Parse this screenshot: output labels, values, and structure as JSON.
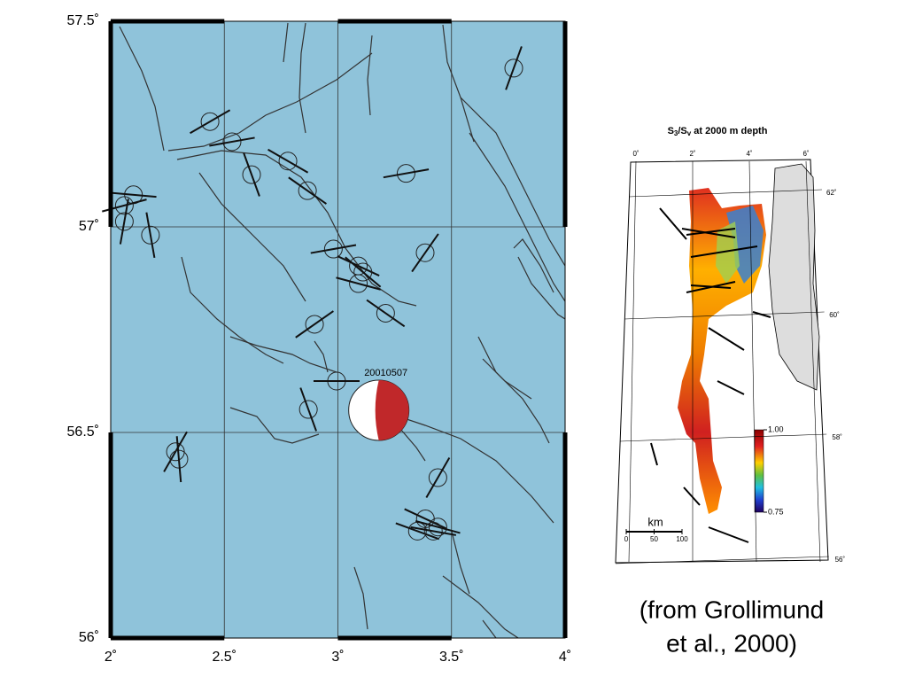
{
  "map": {
    "xlim": [
      2,
      4
    ],
    "ylim": [
      56,
      57.5
    ],
    "xticks": [
      {
        "value": 2,
        "label": "2˚"
      },
      {
        "value": 2.5,
        "label": "2.5˚"
      },
      {
        "value": 3,
        "label": "3˚"
      },
      {
        "value": 3.5,
        "label": "3.5˚"
      },
      {
        "value": 4,
        "label": "4˚"
      }
    ],
    "yticks": [
      {
        "value": 56,
        "label": "56˚"
      },
      {
        "value": 56.5,
        "label": "56.5˚"
      },
      {
        "value": 57,
        "label": "57˚"
      },
      {
        "value": 57.5,
        "label": "57.5˚"
      }
    ],
    "stress_indicators": [
      {
        "lon": 3.774,
        "lat": 57.386,
        "azimuth": 20
      },
      {
        "lon": 2.437,
        "lat": 57.256,
        "azimuth": 60
      },
      {
        "lon": 2.534,
        "lat": 57.207,
        "azimuth": 80
      },
      {
        "lon": 2.62,
        "lat": 57.127,
        "azimuth": 160
      },
      {
        "lon": 2.78,
        "lat": 57.16,
        "azimuth": 120
      },
      {
        "lon": 2.866,
        "lat": 57.088,
        "azimuth": 125
      },
      {
        "lon": 3.3,
        "lat": 57.13,
        "azimuth": 80
      },
      {
        "lon": 2.1,
        "lat": 57.078,
        "azimuth": 95
      },
      {
        "lon": 2.06,
        "lat": 57.052,
        "azimuth": 75
      },
      {
        "lon": 2.06,
        "lat": 57.013,
        "azimuth": 10
      },
      {
        "lon": 2.175,
        "lat": 56.98,
        "azimuth": 170
      },
      {
        "lon": 2.98,
        "lat": 56.946,
        "azimuth": 80
      },
      {
        "lon": 3.09,
        "lat": 56.905,
        "azimuth": 115
      },
      {
        "lon": 3.11,
        "lat": 56.89,
        "azimuth": 130
      },
      {
        "lon": 3.09,
        "lat": 56.862,
        "azimuth": 105
      },
      {
        "lon": 3.384,
        "lat": 56.937,
        "azimuth": 35
      },
      {
        "lon": 3.21,
        "lat": 56.79,
        "azimuth": 125
      },
      {
        "lon": 2.897,
        "lat": 56.763,
        "azimuth": 55
      },
      {
        "lon": 2.994,
        "lat": 56.625,
        "azimuth": 90
      },
      {
        "lon": 2.87,
        "lat": 56.556,
        "azimuth": 160
      },
      {
        "lon": 2.285,
        "lat": 56.453,
        "azimuth": 30
      },
      {
        "lon": 2.3,
        "lat": 56.435,
        "azimuth": 175
      },
      {
        "lon": 3.44,
        "lat": 56.39,
        "azimuth": 30
      },
      {
        "lon": 3.385,
        "lat": 56.29,
        "azimuth": 115
      },
      {
        "lon": 3.35,
        "lat": 56.26,
        "azimuth": 110
      },
      {
        "lon": 3.44,
        "lat": 56.27,
        "azimuth": 105
      },
      {
        "lon": 3.42,
        "lat": 56.26,
        "azimuth": 100
      }
    ],
    "focal_mechanism": {
      "lon": 3.18,
      "lat": 56.554,
      "label": "20010507"
    }
  },
  "inset": {
    "title_parts": [
      "S",
      "3",
      "/S",
      "v",
      " at 2000 m depth"
    ],
    "lon_ticks": [
      {
        "value": 0,
        "label": "0˚"
      },
      {
        "value": 2,
        "label": "2˚"
      },
      {
        "value": 4,
        "label": "4˚"
      },
      {
        "value": 6,
        "label": "6˚"
      }
    ],
    "lat_ticks": [
      {
        "value": 62,
        "label": "62˚"
      },
      {
        "value": 60,
        "label": "60˚"
      },
      {
        "value": 58,
        "label": "58˚"
      },
      {
        "value": 56,
        "label": "56˚"
      }
    ],
    "colorbar": {
      "max": {
        "value": 1,
        "label": "1.00"
      },
      "min": {
        "value": 0.75,
        "label": "0.75"
      }
    },
    "scale": {
      "unit": "km",
      "ticks": [
        0,
        50,
        100
      ]
    }
  },
  "caption": [
    "(from Grollimund",
    "et al., 2000)"
  ]
}
